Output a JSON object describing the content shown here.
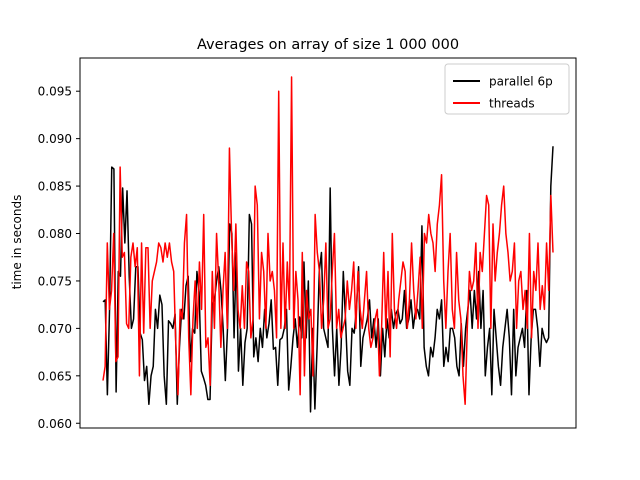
{
  "chart_data": {
    "type": "line",
    "title": "Averages on array of size 1 000 000",
    "xlabel": "",
    "ylabel": "time in seconds",
    "ylim": [
      0.0595,
      0.0985
    ],
    "yticks": [
      0.06,
      0.065,
      0.07,
      0.075,
      0.08,
      0.085,
      0.09,
      0.095
    ],
    "ytick_labels": [
      "0.060",
      "0.065",
      "0.070",
      "0.075",
      "0.080",
      "0.085",
      "0.090",
      "0.095"
    ],
    "show_xticks": false,
    "grid": false,
    "legend": "top-right",
    "series": [
      {
        "name": "parallel 6p",
        "color": "#000000",
        "values": [
          0.0728,
          0.073,
          0.063,
          0.072,
          0.087,
          0.0868,
          0.0633,
          0.076,
          0.0755,
          0.0848,
          0.079,
          0.0845,
          0.0755,
          0.07,
          0.071,
          0.0765,
          0.0765,
          0.0695,
          0.0688,
          0.0645,
          0.066,
          0.062,
          0.065,
          0.066,
          0.072,
          0.07,
          0.0735,
          0.0725,
          0.065,
          0.062,
          0.0708,
          0.0705,
          0.07,
          0.0715,
          0.062,
          0.068,
          0.072,
          0.071,
          0.0745,
          0.0755,
          0.0665,
          0.07,
          0.0695,
          0.076,
          0.0738,
          0.0655,
          0.0648,
          0.064,
          0.0625,
          0.0625,
          0.0725,
          0.073,
          0.075,
          0.0765,
          0.074,
          0.07,
          0.0645,
          0.07,
          0.081,
          0.08,
          0.069,
          0.078,
          0.0655,
          0.07,
          0.064,
          0.0685,
          0.07,
          0.082,
          0.081,
          0.067,
          0.069,
          0.0665,
          0.07,
          0.068,
          0.072,
          0.069,
          0.0705,
          0.073,
          0.0678,
          0.068,
          0.064,
          0.0688,
          0.069,
          0.07,
          0.072,
          0.0635,
          0.066,
          0.069,
          0.071,
          0.068,
          0.0712,
          0.069,
          0.077,
          0.069,
          0.075,
          0.0612,
          0.07,
          0.0615,
          0.068,
          0.076,
          0.078,
          0.07,
          0.069,
          0.068,
          0.0848,
          0.07,
          0.065,
          0.07,
          0.064,
          0.068,
          0.076,
          0.071,
          0.0655,
          0.064,
          0.07,
          0.0695,
          0.072,
          0.0765,
          0.066,
          0.069,
          0.07,
          0.071,
          0.073,
          0.069,
          0.071,
          0.068,
          0.071,
          0.065,
          0.07,
          0.067,
          0.071,
          0.069,
          0.072,
          0.07,
          0.0715,
          0.072,
          0.0705,
          0.071,
          0.074,
          0.07,
          0.071,
          0.073,
          0.07,
          0.0718,
          0.072,
          0.071,
          0.0808,
          0.068,
          0.066,
          0.065,
          0.068,
          0.067,
          0.069,
          0.072,
          0.071,
          0.073,
          0.066,
          0.068,
          0.0665,
          0.07,
          0.07,
          0.069,
          0.066,
          0.065,
          0.0705,
          0.066,
          0.07,
          0.072,
          0.074,
          0.07,
          0.074,
          0.071,
          0.076,
          0.07,
          0.074,
          0.065,
          0.068,
          0.07,
          0.063,
          0.072,
          0.069,
          0.066,
          0.064,
          0.068,
          0.07,
          0.072,
          0.069,
          0.063,
          0.072,
          0.065,
          0.068,
          0.069,
          0.07,
          0.068,
          0.074,
          0.063,
          0.069,
          0.072,
          0.072,
          0.07,
          0.066,
          0.07,
          0.069,
          0.0685,
          0.069,
          0.085,
          0.0892
        ]
      },
      {
        "name": "threads",
        "color": "#ff0000",
        "values": [
          0.0645,
          0.066,
          0.079,
          0.072,
          0.074,
          0.08,
          0.0665,
          0.067,
          0.087,
          0.0775,
          0.078,
          0.0705,
          0.07,
          0.0775,
          0.079,
          0.0765,
          0.0785,
          0.065,
          0.079,
          0.0695,
          0.0785,
          0.0785,
          0.07,
          0.075,
          0.076,
          0.077,
          0.079,
          0.0785,
          0.077,
          0.079,
          0.0775,
          0.079,
          0.077,
          0.076,
          0.068,
          0.063,
          0.072,
          0.071,
          0.079,
          0.082,
          0.069,
          0.063,
          0.071,
          0.075,
          0.07,
          0.077,
          0.072,
          0.082,
          0.068,
          0.069,
          0.064,
          0.076,
          0.07,
          0.08,
          0.075,
          0.068,
          0.074,
          0.078,
          0.07,
          0.089,
          0.08,
          0.074,
          0.081,
          0.072,
          0.07,
          0.0745,
          0.07,
          0.077,
          0.076,
          0.069,
          0.071,
          0.085,
          0.083,
          0.071,
          0.078,
          0.076,
          0.07,
          0.08,
          0.075,
          0.076,
          0.074,
          0.069,
          0.095,
          0.07,
          0.079,
          0.07,
          0.077,
          0.072,
          0.0965,
          0.07,
          0.076,
          0.073,
          0.063,
          0.078,
          0.065,
          0.074,
          0.071,
          0.072,
          0.065,
          0.082,
          0.078,
          0.076,
          0.07,
          0.073,
          0.079,
          0.07,
          0.071,
          0.076,
          0.08,
          0.07,
          0.072,
          0.069,
          0.07,
          0.071,
          0.075,
          0.072,
          0.074,
          0.077,
          0.07,
          0.076,
          0.072,
          0.07,
          0.073,
          0.076,
          0.07,
          0.068,
          0.069,
          0.071,
          0.072,
          0.065,
          0.07,
          0.078,
          0.07,
          0.076,
          0.067,
          0.08,
          0.072,
          0.07,
          0.073,
          0.075,
          0.077,
          0.076,
          0.07,
          0.073,
          0.079,
          0.074,
          0.071,
          0.074,
          0.0775,
          0.07,
          0.08,
          0.079,
          0.082,
          0.08,
          0.079,
          0.076,
          0.081,
          0.083,
          0.0862,
          0.075,
          0.07,
          0.076,
          0.08,
          0.072,
          0.07,
          0.078,
          0.073,
          0.071,
          0.065,
          0.062,
          0.07,
          0.076,
          0.074,
          0.075,
          0.079,
          0.07,
          0.078,
          0.076,
          0.08,
          0.084,
          0.083,
          0.07,
          0.081,
          0.075,
          0.078,
          0.08,
          0.083,
          0.085,
          0.08,
          0.078,
          0.075,
          0.076,
          0.079,
          0.07,
          0.075,
          0.076,
          0.072,
          0.074,
          0.07,
          0.08,
          0.069,
          0.076,
          0.074,
          0.079,
          0.072,
          0.0745,
          0.072,
          0.079,
          0.074,
          0.084,
          0.078
        ]
      }
    ]
  }
}
